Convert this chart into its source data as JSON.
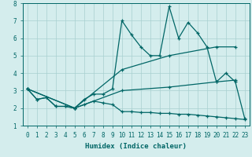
{
  "xlabel": "Humidex (Indice chaleur)",
  "xlim": [
    -0.5,
    23.5
  ],
  "ylim": [
    1,
    8
  ],
  "yticks": [
    1,
    2,
    3,
    4,
    5,
    6,
    7,
    8
  ],
  "xticks": [
    0,
    1,
    2,
    3,
    4,
    5,
    6,
    7,
    8,
    9,
    10,
    11,
    12,
    13,
    14,
    15,
    16,
    17,
    18,
    19,
    20,
    21,
    22,
    23
  ],
  "background_color": "#d4eded",
  "grid_color": "#a8d0d0",
  "line_color": "#006666",
  "lines": [
    {
      "x": [
        0,
        1,
        2,
        3,
        4,
        5,
        6,
        7,
        8,
        9,
        10,
        11,
        12,
        13,
        14,
        15,
        16,
        17,
        18,
        19,
        20,
        21,
        22,
        23
      ],
      "y": [
        3.1,
        2.5,
        2.6,
        2.1,
        2.1,
        2.0,
        2.5,
        2.8,
        2.8,
        3.1,
        7.0,
        6.2,
        5.5,
        5.0,
        5.0,
        7.8,
        6.0,
        6.9,
        6.3,
        5.5,
        3.5,
        4.0,
        3.5,
        1.4
      ]
    },
    {
      "x": [
        0,
        5,
        10,
        15,
        20,
        22
      ],
      "y": [
        3.1,
        2.0,
        4.2,
        5.0,
        5.5,
        5.5
      ]
    },
    {
      "x": [
        0,
        5,
        10,
        15,
        20,
        22
      ],
      "y": [
        3.1,
        2.0,
        3.0,
        3.2,
        3.5,
        3.6
      ]
    },
    {
      "x": [
        0,
        1,
        2,
        3,
        4,
        5,
        6,
        7,
        8,
        9,
        10,
        11,
        12,
        13,
        14,
        15,
        16,
        17,
        18,
        19,
        20,
        21,
        22,
        23
      ],
      "y": [
        3.1,
        2.5,
        2.6,
        2.1,
        2.1,
        2.0,
        2.2,
        2.4,
        2.3,
        2.2,
        1.8,
        1.8,
        1.75,
        1.75,
        1.7,
        1.7,
        1.65,
        1.65,
        1.6,
        1.55,
        1.5,
        1.45,
        1.4,
        1.35
      ]
    }
  ]
}
